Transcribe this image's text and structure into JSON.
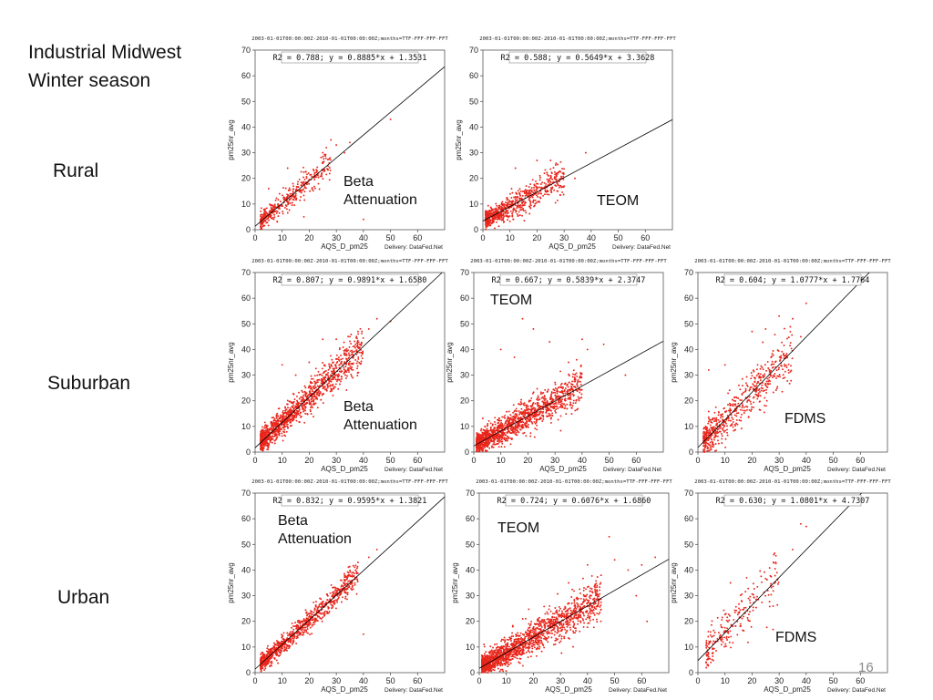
{
  "slide": {
    "title_line1": "Industrial Midwest",
    "title_line2": "Winter season",
    "row_labels": [
      "Rural",
      "Suburban",
      "Urban"
    ],
    "page_number": "16"
  },
  "common": {
    "xlabel": "AQS_D_pm25",
    "ylabel": "pm25nr_avg",
    "credit": "Delivery: DataFed.Net",
    "point_color": "#e8261c",
    "line_color": "#000000"
  },
  "chart_data": [
    {
      "id": "rural-beta",
      "type": "scatter",
      "title": "2003-01-01T00:00:00Z-2010-01-01T00:00:00Z;months=TTF-FFF-FFF-FFT",
      "r2_text": "R2 = 0.788; y = 0.8885*x + 1.3531",
      "overlay": [
        "Beta",
        "Attenuation"
      ],
      "slope": 0.8885,
      "intercept": 1.3531,
      "r2": 0.788,
      "xlim": [
        0,
        70
      ],
      "ylim": [
        0,
        70
      ],
      "xticks": [
        0,
        10,
        20,
        30,
        40,
        50,
        60
      ],
      "yticks": [
        0,
        10,
        20,
        30,
        40,
        50,
        60,
        70
      ],
      "n_points": 400,
      "x_range": [
        2,
        28
      ],
      "noise": 2.6,
      "outliers": [
        [
          30,
          33
        ],
        [
          35,
          34
        ],
        [
          50,
          43
        ],
        [
          28,
          35
        ],
        [
          25,
          30
        ],
        [
          18,
          5
        ],
        [
          5,
          16
        ],
        [
          33,
          30
        ],
        [
          12,
          24
        ],
        [
          40,
          4
        ]
      ]
    },
    {
      "id": "rural-teom",
      "type": "scatter",
      "title": "2003-01-01T00:00:00Z-2010-01-01T00:00:00Z;months=TTF-FFF-FFF-FFT",
      "r2_text": "R2 = 0.588; y = 0.5649*x + 3.3628",
      "overlay": [
        "TEOM"
      ],
      "slope": 0.5649,
      "intercept": 3.3628,
      "r2": 0.588,
      "xlim": [
        0,
        70
      ],
      "ylim": [
        0,
        70
      ],
      "xticks": [
        0,
        10,
        20,
        30,
        40,
        50,
        60
      ],
      "yticks": [
        0,
        10,
        20,
        30,
        40,
        50,
        60,
        70
      ],
      "n_points": 700,
      "x_range": [
        1,
        30
      ],
      "noise": 2.8,
      "outliers": [
        [
          38,
          30
        ],
        [
          30,
          17
        ],
        [
          25,
          27
        ],
        [
          20,
          27
        ],
        [
          34,
          20
        ],
        [
          12,
          24
        ]
      ]
    },
    {
      "id": "suburban-beta",
      "type": "scatter",
      "title": "2003-01-01T00:00:00Z-2010-01-01T00:00:00Z;months=TTF-FFF-FFF-FFT",
      "r2_text": "R2 = 0.807; y = 0.9891*x + 1.6580",
      "overlay": [
        "Beta",
        "Attenuation"
      ],
      "slope": 0.9891,
      "intercept": 1.658,
      "r2": 0.807,
      "xlim": [
        0,
        70
      ],
      "ylim": [
        0,
        70
      ],
      "xticks": [
        0,
        10,
        20,
        30,
        40,
        50,
        60
      ],
      "yticks": [
        0,
        10,
        20,
        30,
        40,
        50,
        60,
        70
      ],
      "n_points": 1200,
      "x_range": [
        2,
        40
      ],
      "noise": 3.5,
      "outliers": [
        [
          45,
          52
        ],
        [
          50,
          51
        ],
        [
          42,
          48
        ],
        [
          38,
          47
        ],
        [
          35,
          45
        ],
        [
          30,
          44
        ],
        [
          25,
          44
        ],
        [
          20,
          35
        ],
        [
          15,
          30
        ],
        [
          10,
          34
        ]
      ]
    },
    {
      "id": "suburban-teom",
      "type": "scatter",
      "title": "2003-01-01T00:00:00Z-2010-01-01T00:00:00Z;months=TTF-FFF-FFF-FFT",
      "r2_text": "R2 = 0.667; y = 0.5839*x + 2.3747",
      "overlay": [
        "TEOM"
      ],
      "slope": 0.5839,
      "intercept": 2.3747,
      "r2": 0.667,
      "xlim": [
        0,
        70
      ],
      "ylim": [
        0,
        70
      ],
      "xticks": [
        0,
        10,
        20,
        30,
        40,
        50,
        60
      ],
      "yticks": [
        0,
        10,
        20,
        30,
        40,
        50,
        60,
        70
      ],
      "n_points": 1400,
      "x_range": [
        1,
        40
      ],
      "noise": 3.3,
      "outliers": [
        [
          18,
          52
        ],
        [
          22,
          48
        ],
        [
          28,
          43
        ],
        [
          38,
          36
        ],
        [
          40,
          44
        ],
        [
          48,
          42
        ],
        [
          42,
          40
        ],
        [
          10,
          40
        ],
        [
          35,
          35
        ],
        [
          15,
          37
        ],
        [
          56,
          30
        ]
      ]
    },
    {
      "id": "suburban-fdms",
      "type": "scatter",
      "title": "2003-01-01T00:00:00Z-2010-01-01T00:00:00Z;months=TTF-FFF-FFF-FFT",
      "r2_text": "R2 = 0.604; y = 1.0777*x + 1.7764",
      "overlay": [
        "FDMS"
      ],
      "slope": 1.0777,
      "intercept": 1.7764,
      "r2": 0.604,
      "xlim": [
        0,
        70
      ],
      "ylim": [
        0,
        70
      ],
      "xticks": [
        0,
        10,
        20,
        30,
        40,
        50,
        60
      ],
      "yticks": [
        0,
        10,
        20,
        30,
        40,
        50,
        60,
        70
      ],
      "n_points": 600,
      "x_range": [
        2,
        35
      ],
      "noise": 4.8,
      "outliers": [
        [
          40,
          58
        ],
        [
          35,
          52
        ],
        [
          30,
          53
        ],
        [
          25,
          48
        ],
        [
          20,
          47
        ],
        [
          38,
          45
        ],
        [
          4,
          32
        ],
        [
          10,
          34
        ]
      ]
    },
    {
      "id": "urban-beta",
      "type": "scatter",
      "title": "2003-01-01T00:00:00Z-2010-01-01T00:00:00Z;months=TTF-FFF-FFF-FFT",
      "r2_text": "R2 = 0.832; y = 0.9595*x + 1.3821",
      "overlay": [
        "Beta",
        "Attenuation"
      ],
      "slope": 0.9595,
      "intercept": 1.3821,
      "r2": 0.832,
      "xlim": [
        0,
        70
      ],
      "ylim": [
        0,
        70
      ],
      "xticks": [
        0,
        10,
        20,
        30,
        40,
        50,
        60
      ],
      "yticks": [
        0,
        10,
        20,
        30,
        40,
        50,
        60,
        70
      ],
      "n_points": 900,
      "x_range": [
        2,
        38
      ],
      "noise": 2.3,
      "outliers": [
        [
          45,
          48
        ],
        [
          42,
          45
        ],
        [
          38,
          43
        ],
        [
          35,
          38
        ],
        [
          33,
          36
        ],
        [
          30,
          32
        ],
        [
          40,
          15
        ],
        [
          22,
          20
        ]
      ]
    },
    {
      "id": "urban-teom",
      "type": "scatter",
      "title": "2003-01-01T00:00:00Z-2010-01-01T00:00:00Z;months=TTF-FFF-FFF-FFT",
      "r2_text": "R2 = 0.724; y = 0.6076*x + 1.6860",
      "overlay": [
        "TEOM"
      ],
      "slope": 0.6076,
      "intercept": 1.686,
      "r2": 0.724,
      "xlim": [
        0,
        70
      ],
      "ylim": [
        0,
        70
      ],
      "xticks": [
        0,
        10,
        20,
        30,
        40,
        50,
        60
      ],
      "yticks": [
        0,
        10,
        20,
        30,
        40,
        50,
        60,
        70
      ],
      "n_points": 1600,
      "x_range": [
        1,
        45
      ],
      "noise": 3.6,
      "outliers": [
        [
          48,
          53
        ],
        [
          50,
          44
        ],
        [
          55,
          40
        ],
        [
          60,
          42
        ],
        [
          40,
          42
        ],
        [
          45,
          38
        ],
        [
          33,
          35
        ],
        [
          58,
          30
        ],
        [
          65,
          45
        ],
        [
          62,
          20
        ]
      ]
    },
    {
      "id": "urban-fdms",
      "type": "scatter",
      "title": "2003-01-01T00:00:00Z-2010-01-01T00:00:00Z;months=TTF-FFF-FFF-FFT",
      "r2_text": "R2 = 0.630; y = 1.0801*x + 4.7307",
      "overlay": [
        "FDMS"
      ],
      "slope": 1.0801,
      "intercept": 4.7307,
      "r2": 0.63,
      "xlim": [
        0,
        70
      ],
      "ylim": [
        0,
        70
      ],
      "xticks": [
        0,
        10,
        20,
        30,
        40,
        50,
        60
      ],
      "yticks": [
        0,
        10,
        20,
        30,
        40,
        50,
        60,
        70
      ],
      "n_points": 220,
      "x_range": [
        3,
        30
      ],
      "noise": 5.5,
      "outliers": [
        [
          38,
          58
        ],
        [
          40,
          57
        ],
        [
          35,
          48
        ],
        [
          28,
          46
        ],
        [
          18,
          37
        ],
        [
          12,
          35
        ]
      ]
    }
  ]
}
